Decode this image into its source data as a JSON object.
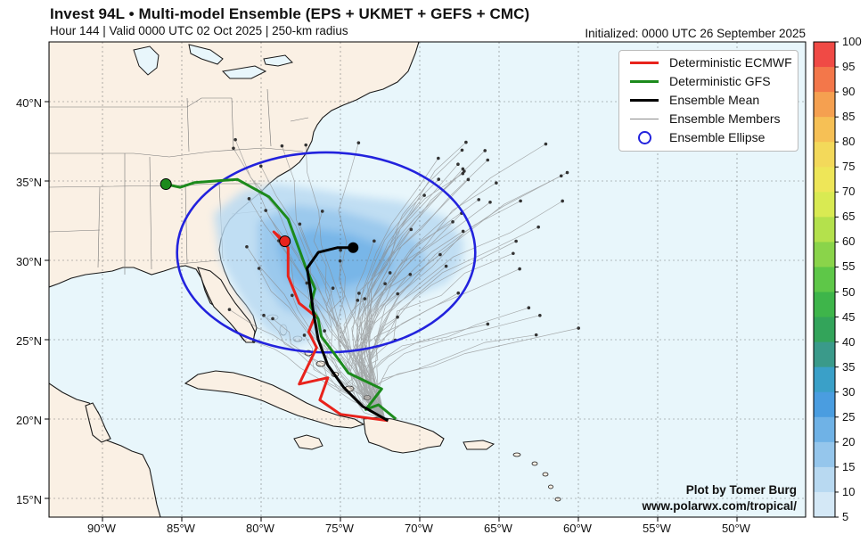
{
  "title": "Invest 94L • Multi-model Ensemble (EPS + UKMET + GEFS + CMC)",
  "subtitle": "Hour 144 | Valid 0000 UTC 02 Oct 2025 | 250-km radius",
  "initialized": "Initialized: 0000 UTC 26 September 2025",
  "legend": {
    "items": [
      {
        "label": "Deterministic ECMWF",
        "color": "#e8231c"
      },
      {
        "label": "Deterministic GFS",
        "color": "#1c8a1c"
      },
      {
        "label": "Ensemble Mean",
        "color": "#000000"
      },
      {
        "label": "Ensemble Members",
        "color": "#8a8a8a"
      },
      {
        "label": "Ensemble Ellipse",
        "color": "#2222dd"
      }
    ]
  },
  "credit": {
    "line1": "Plot by Tomer Burg",
    "line2": "www.polarwx.com/tropical/"
  },
  "axes": {
    "lat_labels": [
      "40°N",
      "35°N",
      "30°N",
      "25°N",
      "20°N",
      "15°N"
    ],
    "lon_labels": [
      "90°W",
      "85°W",
      "80°W",
      "75°W",
      "70°W",
      "65°W",
      "60°W",
      "55°W",
      "50°W"
    ]
  },
  "colorbar": {
    "ticks": [
      "100",
      "95",
      "90",
      "85",
      "80",
      "75",
      "70",
      "65",
      "60",
      "55",
      "50",
      "45",
      "40",
      "35",
      "30",
      "25",
      "20",
      "15",
      "10",
      "5"
    ],
    "colors": [
      "#f04a45",
      "#f3774a",
      "#f5a050",
      "#f6c055",
      "#f3d95a",
      "#eee658",
      "#d9ea52",
      "#b4e14c",
      "#8ad44a",
      "#5ec748",
      "#3eb54a",
      "#33a45a",
      "#3a9a8a",
      "#3aa0c8",
      "#4a9de0",
      "#6fb2e6",
      "#95c6ec",
      "#b8d9f1",
      "#d4e8f6"
    ]
  },
  "map_data": {
    "ecmwf_track": [
      [
        -72.0,
        19.9
      ],
      [
        -75.0,
        20.3
      ],
      [
        -76.3,
        21.2
      ],
      [
        -75.8,
        22.6
      ],
      [
        -77.6,
        22.2
      ],
      [
        -76.5,
        24.5
      ],
      [
        -77.0,
        25.5
      ],
      [
        -76.6,
        26.5
      ],
      [
        -77.6,
        27.3
      ],
      [
        -78.3,
        29.0
      ],
      [
        -78.3,
        30.8
      ],
      [
        -79.2,
        31.8
      ],
      [
        -78.5,
        31.2
      ]
    ],
    "gfs_track": [
      [
        -71.5,
        20.0
      ],
      [
        -72.6,
        20.9
      ],
      [
        -73.4,
        20.6
      ],
      [
        -72.4,
        21.9
      ],
      [
        -74.5,
        22.9
      ],
      [
        -75.3,
        24.0
      ],
      [
        -76.2,
        25.2
      ],
      [
        -76.4,
        26.3
      ],
      [
        -76.9,
        27.1
      ],
      [
        -76.6,
        28.2
      ],
      [
        -77.2,
        29.6
      ],
      [
        -77.6,
        30.7
      ],
      [
        -78.3,
        32.6
      ],
      [
        -79.5,
        34.0
      ],
      [
        -81.5,
        35.1
      ],
      [
        -84.2,
        34.9
      ],
      [
        -85.1,
        34.6
      ],
      [
        -86.0,
        34.8
      ]
    ],
    "mean_track": [
      [
        -72.0,
        19.9
      ],
      [
        -73.6,
        20.8
      ],
      [
        -74.8,
        22.0
      ],
      [
        -75.8,
        23.4
      ],
      [
        -76.4,
        25.0
      ],
      [
        -76.7,
        26.7
      ],
      [
        -76.9,
        28.2
      ],
      [
        -77.1,
        29.5
      ],
      [
        -76.4,
        30.5
      ],
      [
        -75.2,
        30.8
      ],
      [
        -74.2,
        30.8
      ]
    ],
    "ellipse": {
      "center": [
        -75.9,
        30.5
      ],
      "semi_lon_deg": 9.4,
      "semi_lat_deg": 6.3
    }
  }
}
